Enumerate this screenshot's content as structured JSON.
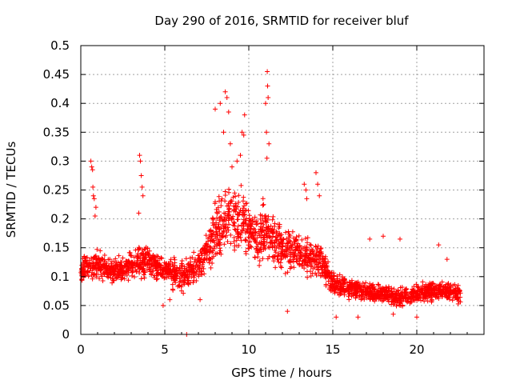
{
  "chart_data": {
    "type": "scatter",
    "title": "Day 290 of 2016, SRMTID for receiver bluf",
    "xlabel": "GPS time / hours",
    "ylabel": "SRMTID / TECUs",
    "xlim": [
      0,
      24
    ],
    "ylim": [
      0,
      0.5
    ],
    "x_ticks": [
      0,
      5,
      10,
      15,
      20
    ],
    "x_tick_labels": [
      "0",
      "5",
      "10",
      "15",
      "20"
    ],
    "y_ticks": [
      0,
      0.05,
      0.1,
      0.15,
      0.2,
      0.25,
      0.3,
      0.35,
      0.4,
      0.45,
      0.5
    ],
    "y_tick_labels": [
      "0",
      "0.05",
      "0.1",
      "0.15",
      "0.2",
      "0.25",
      "0.3",
      "0.35",
      "0.4",
      "0.45",
      "0.5"
    ],
    "grid": true,
    "marker": "+",
    "series_color": "#ff0000",
    "baseline_profile": {
      "hours": [
        0,
        1,
        2,
        3,
        4,
        5,
        6,
        7,
        7.5,
        8,
        8.5,
        9,
        9.5,
        10,
        10.5,
        11,
        11.5,
        12,
        13,
        14,
        14.5,
        15,
        16,
        17,
        18,
        19,
        20,
        21,
        22,
        22.6
      ],
      "median": [
        0.11,
        0.12,
        0.11,
        0.12,
        0.13,
        0.11,
        0.1,
        0.12,
        0.14,
        0.17,
        0.2,
        0.21,
        0.2,
        0.18,
        0.17,
        0.18,
        0.16,
        0.15,
        0.14,
        0.13,
        0.12,
        0.09,
        0.08,
        0.075,
        0.07,
        0.065,
        0.07,
        0.075,
        0.075,
        0.065
      ],
      "spread": [
        0.03,
        0.03,
        0.025,
        0.03,
        0.03,
        0.03,
        0.035,
        0.035,
        0.045,
        0.06,
        0.07,
        0.07,
        0.07,
        0.06,
        0.055,
        0.06,
        0.05,
        0.045,
        0.04,
        0.04,
        0.035,
        0.025,
        0.02,
        0.02,
        0.02,
        0.02,
        0.02,
        0.02,
        0.02,
        0.02
      ]
    },
    "points": [
      [
        0.6,
        0.3
      ],
      [
        0.65,
        0.29
      ],
      [
        0.7,
        0.285
      ],
      [
        0.72,
        0.255
      ],
      [
        0.75,
        0.24
      ],
      [
        0.8,
        0.235
      ],
      [
        0.85,
        0.205
      ],
      [
        0.9,
        0.22
      ],
      [
        3.5,
        0.31
      ],
      [
        3.55,
        0.3
      ],
      [
        3.6,
        0.275
      ],
      [
        3.65,
        0.255
      ],
      [
        3.7,
        0.24
      ],
      [
        3.45,
        0.21
      ],
      [
        6.3,
        0.0
      ],
      [
        5.3,
        0.06
      ],
      [
        4.9,
        0.05
      ],
      [
        8.0,
        0.39
      ],
      [
        8.3,
        0.4
      ],
      [
        8.6,
        0.42
      ],
      [
        8.7,
        0.41
      ],
      [
        8.8,
        0.385
      ],
      [
        8.5,
        0.35
      ],
      [
        8.9,
        0.33
      ],
      [
        9.6,
        0.35
      ],
      [
        9.7,
        0.345
      ],
      [
        9.75,
        0.38
      ],
      [
        9.5,
        0.31
      ],
      [
        9.3,
        0.3
      ],
      [
        9.0,
        0.29
      ],
      [
        11.1,
        0.455
      ],
      [
        11.12,
        0.43
      ],
      [
        11.15,
        0.41
      ],
      [
        11.0,
        0.4
      ],
      [
        11.05,
        0.35
      ],
      [
        11.2,
        0.33
      ],
      [
        11.08,
        0.305
      ],
      [
        13.4,
        0.25
      ],
      [
        13.3,
        0.26
      ],
      [
        13.45,
        0.235
      ],
      [
        14.0,
        0.28
      ],
      [
        14.1,
        0.26
      ],
      [
        14.2,
        0.24
      ],
      [
        17.2,
        0.165
      ],
      [
        18.0,
        0.17
      ],
      [
        19.0,
        0.165
      ],
      [
        21.3,
        0.155
      ],
      [
        21.8,
        0.13
      ],
      [
        15.2,
        0.03
      ],
      [
        16.5,
        0.03
      ],
      [
        18.6,
        0.035
      ],
      [
        20.0,
        0.03
      ],
      [
        12.3,
        0.04
      ],
      [
        7.1,
        0.06
      ]
    ]
  }
}
